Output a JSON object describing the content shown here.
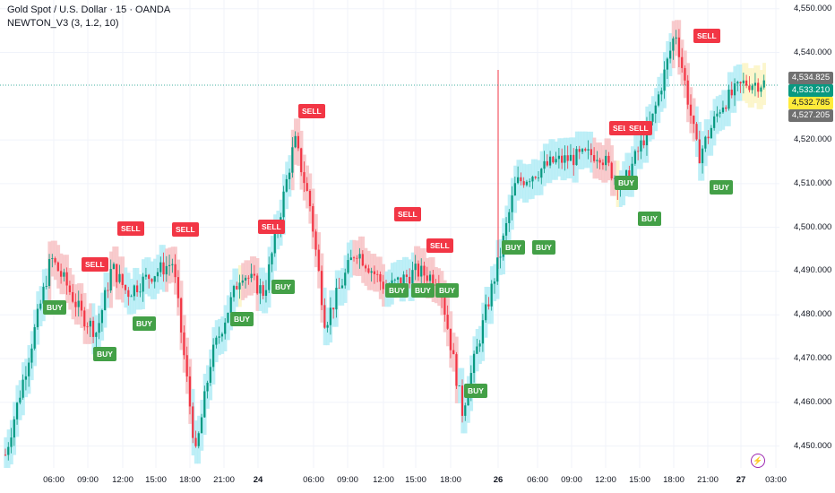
{
  "legend": {
    "title": "Gold Spot / U.S. Dollar · 15 · OANDA",
    "indicator": "NEWTON_V3 (3, 1.2, 10)"
  },
  "price_axis": {
    "labels": [
      "4,550.000",
      "4,540.000",
      "4,520.000",
      "4,510.000",
      "4,500.000",
      "4,490.000",
      "4,480.000",
      "4,470.000",
      "4,460.000",
      "4,450.000"
    ],
    "tags": [
      {
        "text": "4,534.825",
        "color": "#707070"
      },
      {
        "text": "4,533.210",
        "color": "#089981"
      },
      {
        "text": "4,532.785",
        "color": "#ffeb3b",
        "textColor": "#131722"
      },
      {
        "text": "4,527.205",
        "color": "#707070"
      }
    ]
  },
  "time_axis": {
    "labels": [
      {
        "text": "06:00",
        "bold": false
      },
      {
        "text": "09:00",
        "bold": false
      },
      {
        "text": "12:00",
        "bold": false
      },
      {
        "text": "15:00",
        "bold": false
      },
      {
        "text": "18:00",
        "bold": false
      },
      {
        "text": "21:00",
        "bold": false
      },
      {
        "text": "24",
        "bold": true
      },
      {
        "text": "06:00",
        "bold": false
      },
      {
        "text": "09:00",
        "bold": false
      },
      {
        "text": "12:00",
        "bold": false
      },
      {
        "text": "15:00",
        "bold": false
      },
      {
        "text": "18:00",
        "bold": false
      },
      {
        "text": "26",
        "bold": true
      },
      {
        "text": "06:00",
        "bold": false
      },
      {
        "text": "09:00",
        "bold": false
      },
      {
        "text": "12:00",
        "bold": false
      },
      {
        "text": "15:00",
        "bold": false
      },
      {
        "text": "18:00",
        "bold": false
      },
      {
        "text": "21:00",
        "bold": false
      },
      {
        "text": "27",
        "bold": true
      },
      {
        "text": "03:00",
        "bold": false
      }
    ]
  },
  "signals": {
    "sell_label": "SELL",
    "buy_label": "BUY",
    "sell": [
      {
        "text": "SELL"
      },
      {
        "text": "SELL"
      },
      {
        "text": "SELL"
      },
      {
        "text": "SELL"
      },
      {
        "text": "SELL"
      },
      {
        "text": "SELL"
      },
      {
        "text": "SELL"
      },
      {
        "text": "SELL"
      },
      {
        "text": "SELL"
      },
      {
        "text": "SELL"
      }
    ],
    "buy": [
      {
        "text": "BUY"
      },
      {
        "text": "BUY"
      },
      {
        "text": "BUY"
      },
      {
        "text": "BUY"
      },
      {
        "text": "BUY"
      },
      {
        "text": "BUY"
      },
      {
        "text": "BUY"
      },
      {
        "text": "BUY"
      },
      {
        "text": "BUY"
      },
      {
        "text": "BUY"
      },
      {
        "text": "BUY"
      },
      {
        "text": "BUY"
      },
      {
        "text": "BUY"
      },
      {
        "text": "BUY"
      }
    ]
  },
  "colors": {
    "up": "#089981",
    "down": "#f23645",
    "band_up": "#b3ecf6",
    "band_down": "#f7c2c4",
    "band_neutral": "#fbf5c4",
    "last_price_line": "#089981"
  },
  "chart_data": {
    "type": "candlestick",
    "symbol_title": "Gold Spot / U.S. Dollar · 15 · OANDA",
    "ylim": [
      4445,
      4552
    ],
    "close_path": [
      {
        "x": 0,
        "y": 4448
      },
      {
        "x": 0.03,
        "y": 4470
      },
      {
        "x": 0.06,
        "y": 4493
      },
      {
        "x": 0.08,
        "y": 4487
      },
      {
        "x": 0.1,
        "y": 4480
      },
      {
        "x": 0.12,
        "y": 4476
      },
      {
        "x": 0.14,
        "y": 4491
      },
      {
        "x": 0.16,
        "y": 4485
      },
      {
        "x": 0.19,
        "y": 4489
      },
      {
        "x": 0.22,
        "y": 4492
      },
      {
        "x": 0.25,
        "y": 4448
      },
      {
        "x": 0.27,
        "y": 4470
      },
      {
        "x": 0.31,
        "y": 4490
      },
      {
        "x": 0.34,
        "y": 4485
      },
      {
        "x": 0.38,
        "y": 4520
      },
      {
        "x": 0.4,
        "y": 4505
      },
      {
        "x": 0.42,
        "y": 4478
      },
      {
        "x": 0.46,
        "y": 4495
      },
      {
        "x": 0.5,
        "y": 4486
      },
      {
        "x": 0.54,
        "y": 4490
      },
      {
        "x": 0.57,
        "y": 4488
      },
      {
        "x": 0.6,
        "y": 4458
      },
      {
        "x": 0.63,
        "y": 4480
      },
      {
        "x": 0.65,
        "y": 4494
      },
      {
        "x": 0.67,
        "y": 4510
      },
      {
        "x": 0.72,
        "y": 4515
      },
      {
        "x": 0.78,
        "y": 4517
      },
      {
        "x": 0.81,
        "y": 4509
      },
      {
        "x": 0.85,
        "y": 4525
      },
      {
        "x": 0.88,
        "y": 4545
      },
      {
        "x": 0.91,
        "y": 4516
      },
      {
        "x": 0.94,
        "y": 4528
      },
      {
        "x": 0.97,
        "y": 4533
      }
    ]
  }
}
